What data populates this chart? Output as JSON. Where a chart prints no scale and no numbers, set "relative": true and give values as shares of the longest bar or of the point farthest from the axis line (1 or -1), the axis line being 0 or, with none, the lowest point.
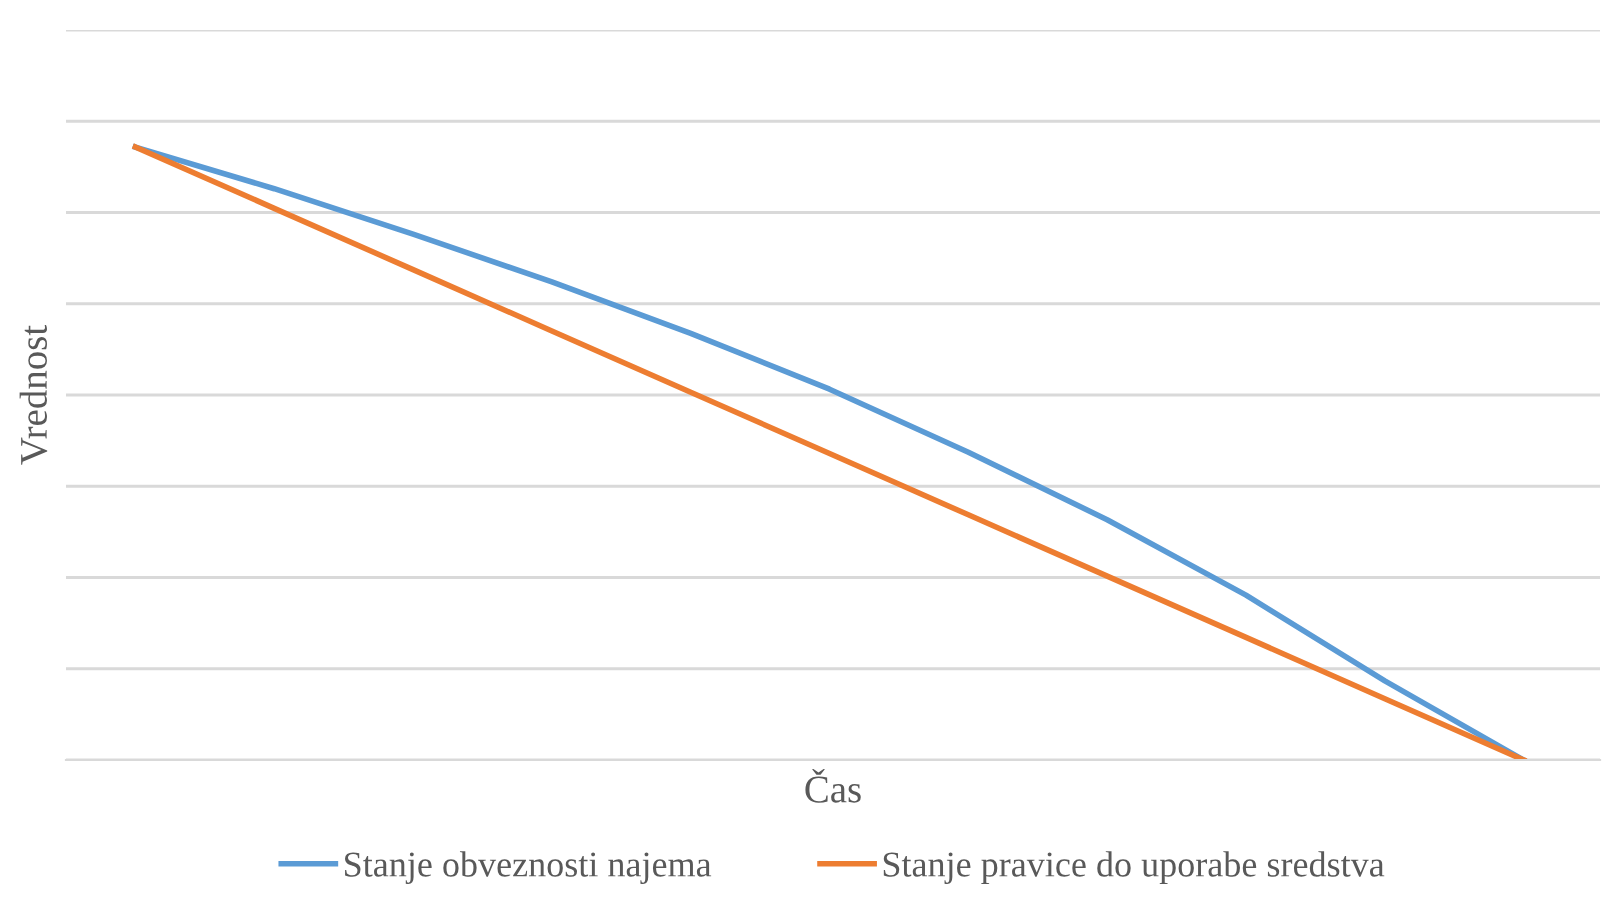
{
  "chart_data": {
    "type": "line",
    "xlabel": "Čas",
    "ylabel": "Vrednost",
    "relative": true,
    "grid": "y",
    "legend": "bottom",
    "marker": "none",
    "line_style": "solid",
    "categories": [
      null,
      null,
      null,
      null,
      null,
      null,
      null,
      null,
      null,
      null,
      null
    ],
    "series": [
      {
        "name": "Stanje obveznosti najema",
        "color": "#5b9bd5",
        "values": [
          1,
          0.932,
          0.858,
          0.78,
          0.696,
          0.605,
          0.502,
          0.392,
          0.269,
          0.129,
          0
        ]
      },
      {
        "name": "Stanje pravice do uporabe sredstva",
        "color": "#ed7d31",
        "values": [
          1,
          0.9,
          0.8,
          0.7,
          0.6,
          0.5,
          0.4,
          0.3,
          0.2,
          0.1,
          0
        ]
      }
    ]
  }
}
